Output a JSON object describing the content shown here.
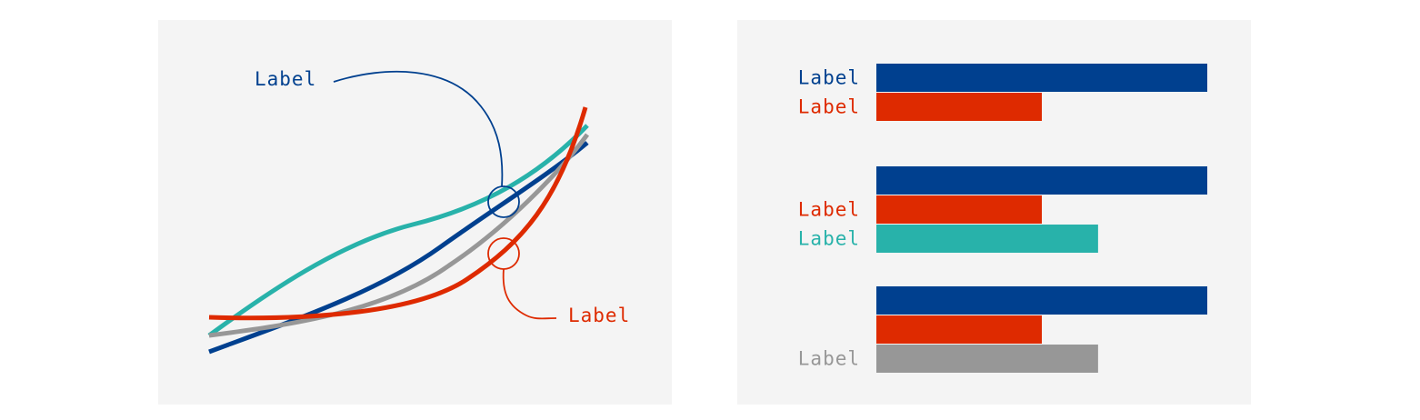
{
  "colors": {
    "blue": "#00408f",
    "red": "#de2a00",
    "teal": "#28b2aa",
    "gray": "#979797",
    "panel": "#f4f4f4"
  },
  "chart_data": [
    {
      "type": "line",
      "title": "",
      "xlabel": "",
      "ylabel": "",
      "axes": "none",
      "series": [
        {
          "color": "teal"
        },
        {
          "color": "blue"
        },
        {
          "color": "gray"
        },
        {
          "color": "red"
        }
      ],
      "annotations": [
        {
          "text": "Label",
          "color": "blue",
          "target_series": 1
        },
        {
          "text": "Label",
          "color": "red",
          "target_series": 3
        }
      ]
    },
    {
      "type": "bar",
      "orientation": "horizontal",
      "title": "",
      "xlabel": "",
      "ylabel": "",
      "axes": "none",
      "xlim": [
        0,
        100
      ],
      "groups": [
        {
          "bars": [
            {
              "label": "Label",
              "color": "blue",
              "value": 100
            },
            {
              "label": "Label",
              "color": "red",
              "value": 50
            }
          ]
        },
        {
          "bars": [
            {
              "label": "",
              "color": "blue",
              "value": 100
            },
            {
              "label": "Label",
              "color": "red",
              "value": 50
            },
            {
              "label": "Label",
              "color": "teal",
              "value": 67
            }
          ]
        },
        {
          "bars": [
            {
              "label": "",
              "color": "blue",
              "value": 100
            },
            {
              "label": "",
              "color": "red",
              "value": 50
            },
            {
              "label": "Label",
              "color": "gray",
              "value": 67
            }
          ]
        }
      ]
    }
  ]
}
